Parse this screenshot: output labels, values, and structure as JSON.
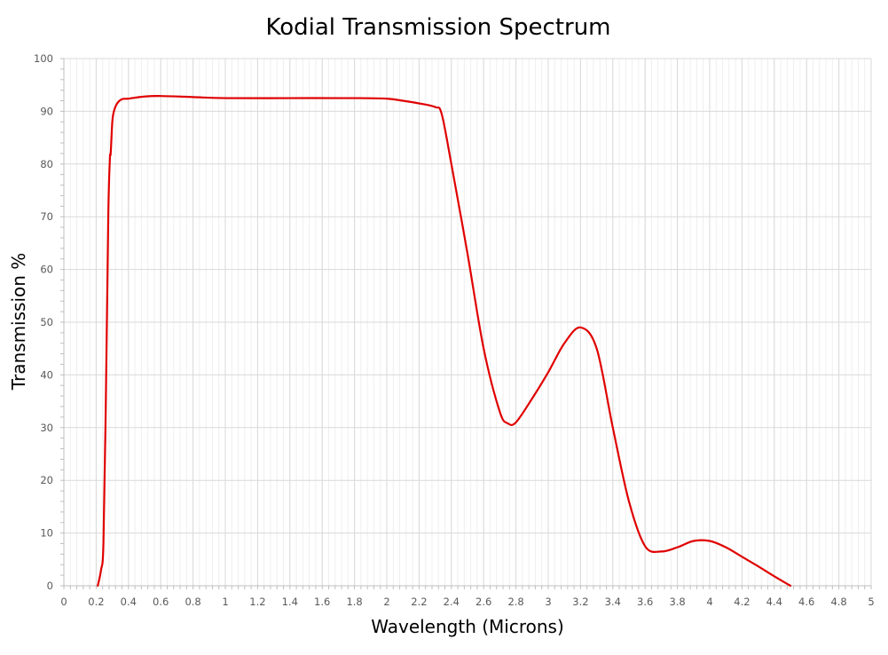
{
  "chart_data": {
    "type": "line",
    "title": "Kodial Transmission Spectrum",
    "xlabel": "Wavelength (Microns)",
    "ylabel": "Transmission %",
    "xlim": [
      0,
      5
    ],
    "ylim": [
      0,
      100
    ],
    "x_major_step": 0.2,
    "y_major_step": 10,
    "x_minor_step": 0.04,
    "y_minor_step": 2,
    "x_tick_labels": [
      "0",
      "0.2",
      "0.4",
      "0.6",
      "0.8",
      "1",
      "1.2",
      "1.4",
      "1.6",
      "1.8",
      "2",
      "2.2",
      "2.4",
      "2.6",
      "2.8",
      "3",
      "3.2",
      "3.4",
      "3.6",
      "3.8",
      "4",
      "4.2",
      "4.4",
      "4.6",
      "4.8",
      "5"
    ],
    "y_tick_labels": [
      "0",
      "10",
      "20",
      "30",
      "40",
      "50",
      "60",
      "70",
      "80",
      "90",
      "100"
    ],
    "grid": true,
    "legend": false,
    "series": [
      {
        "color": "#e00000",
        "x": [
          0.21,
          0.23,
          0.245,
          0.26,
          0.275,
          0.285,
          0.29,
          0.3,
          0.31,
          0.33,
          0.36,
          0.4,
          0.5,
          0.6,
          0.8,
          1.0,
          1.4,
          1.8,
          2.0,
          2.1,
          2.2,
          2.3,
          2.34,
          2.4,
          2.5,
          2.6,
          2.7,
          2.75,
          2.8,
          2.9,
          3.0,
          3.1,
          3.2,
          3.3,
          3.4,
          3.5,
          3.6,
          3.7,
          3.8,
          3.9,
          4.0,
          4.1,
          4.2,
          4.3,
          4.4,
          4.5
        ],
        "y": [
          0,
          3,
          8,
          35,
          70,
          81,
          82,
          88,
          90,
          91.5,
          92.3,
          92.4,
          92.8,
          92.9,
          92.7,
          92.5,
          92.5,
          92.5,
          92.4,
          92.0,
          91.5,
          90.8,
          89.5,
          80,
          63,
          45,
          33,
          30.8,
          31,
          35.5,
          40.5,
          46,
          49,
          45,
          30,
          16,
          7.5,
          6.5,
          7.3,
          8.5,
          8.5,
          7.3,
          5.5,
          3.7,
          1.8,
          0
        ]
      }
    ]
  }
}
